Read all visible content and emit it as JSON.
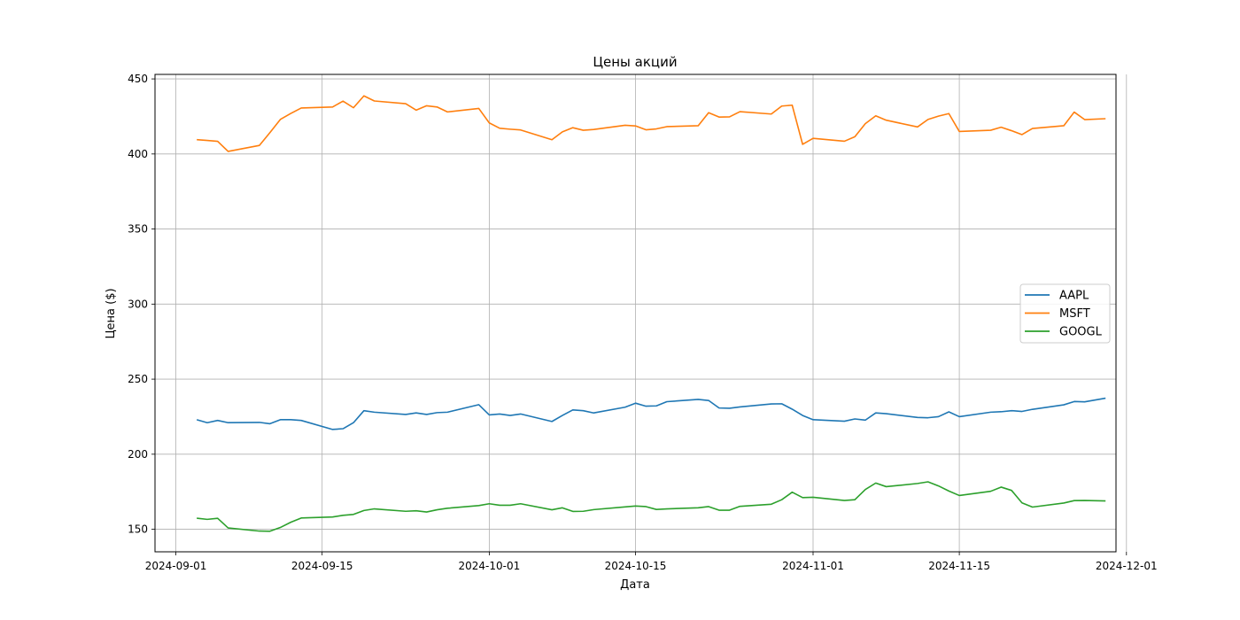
{
  "chart_data": {
    "type": "line",
    "title": "Цены акций",
    "xlabel": "Дата",
    "ylabel": "Цена ($)",
    "xlim": [
      "2024-08-30",
      "2024-11-30"
    ],
    "ylim": [
      135,
      453
    ],
    "xticks": [
      "2024-09-01",
      "2024-09-15",
      "2024-10-01",
      "2024-10-15",
      "2024-11-01",
      "2024-11-15",
      "2024-12-01"
    ],
    "yticks": [
      150,
      200,
      250,
      300,
      350,
      400,
      450
    ],
    "grid": true,
    "legend_position": "center-right",
    "series": [
      {
        "name": "AAPL",
        "color": "#1f77b4",
        "points": [
          [
            "2024-09-03",
            223
          ],
          [
            "2024-09-04",
            221
          ],
          [
            "2024-09-05",
            222.5
          ],
          [
            "2024-09-06",
            221
          ],
          [
            "2024-09-09",
            221.2
          ],
          [
            "2024-09-10",
            220.3
          ],
          [
            "2024-09-11",
            223
          ],
          [
            "2024-09-12",
            223
          ],
          [
            "2024-09-13",
            222.5
          ],
          [
            "2024-09-16",
            216.5
          ],
          [
            "2024-09-17",
            217
          ],
          [
            "2024-09-18",
            221
          ],
          [
            "2024-09-19",
            229
          ],
          [
            "2024-09-20",
            228
          ],
          [
            "2024-09-23",
            226.5
          ],
          [
            "2024-09-24",
            227.5
          ],
          [
            "2024-09-25",
            226.5
          ],
          [
            "2024-09-26",
            227.7
          ],
          [
            "2024-09-27",
            228
          ],
          [
            "2024-09-30",
            233
          ],
          [
            "2024-10-01",
            226.2
          ],
          [
            "2024-10-02",
            226.8
          ],
          [
            "2024-10-03",
            225.8
          ],
          [
            "2024-10-04",
            226.8
          ],
          [
            "2024-10-07",
            221.8
          ],
          [
            "2024-10-08",
            225.8
          ],
          [
            "2024-10-09",
            229.5
          ],
          [
            "2024-10-10",
            229
          ],
          [
            "2024-10-11",
            227.5
          ],
          [
            "2024-10-14",
            231.3
          ],
          [
            "2024-10-15",
            234
          ],
          [
            "2024-10-16",
            232
          ],
          [
            "2024-10-17",
            232.2
          ],
          [
            "2024-10-18",
            235
          ],
          [
            "2024-10-21",
            236.5
          ],
          [
            "2024-10-22",
            235.8
          ],
          [
            "2024-10-23",
            230.8
          ],
          [
            "2024-10-24",
            230.6
          ],
          [
            "2024-10-25",
            231.5
          ],
          [
            "2024-10-28",
            233.5
          ],
          [
            "2024-10-29",
            233.6
          ],
          [
            "2024-10-30",
            230
          ],
          [
            "2024-10-31",
            225.8
          ],
          [
            "2024-11-01",
            223
          ],
          [
            "2024-11-04",
            222
          ],
          [
            "2024-11-05",
            223.5
          ],
          [
            "2024-11-06",
            222.7
          ],
          [
            "2024-11-07",
            227.5
          ],
          [
            "2024-11-08",
            227
          ],
          [
            "2024-11-11",
            224.5
          ],
          [
            "2024-11-12",
            224.3
          ],
          [
            "2024-11-13",
            225
          ],
          [
            "2024-11-14",
            228.2
          ],
          [
            "2024-11-15",
            225
          ],
          [
            "2024-11-18",
            228
          ],
          [
            "2024-11-19",
            228.3
          ],
          [
            "2024-11-20",
            229
          ],
          [
            "2024-11-21",
            228.5
          ],
          [
            "2024-11-22",
            229.9
          ],
          [
            "2024-11-25",
            232.9
          ],
          [
            "2024-11-26",
            235.1
          ],
          [
            "2024-11-27",
            234.9
          ],
          [
            "2024-11-29",
            237.3
          ]
        ]
      },
      {
        "name": "MSFT",
        "color": "#ff7f0e",
        "points": [
          [
            "2024-09-03",
            409.5
          ],
          [
            "2024-09-04",
            409
          ],
          [
            "2024-09-05",
            408.4
          ],
          [
            "2024-09-06",
            401.7
          ],
          [
            "2024-09-09",
            405.7
          ],
          [
            "2024-09-10",
            414.2
          ],
          [
            "2024-09-11",
            423
          ],
          [
            "2024-09-12",
            427
          ],
          [
            "2024-09-13",
            430.6
          ],
          [
            "2024-09-16",
            431.3
          ],
          [
            "2024-09-17",
            435.2
          ],
          [
            "2024-09-18",
            430.8
          ],
          [
            "2024-09-19",
            438.7
          ],
          [
            "2024-09-20",
            435.3
          ],
          [
            "2024-09-23",
            433.5
          ],
          [
            "2024-09-24",
            429.2
          ],
          [
            "2024-09-25",
            432.1
          ],
          [
            "2024-09-26",
            431.3
          ],
          [
            "2024-09-27",
            428
          ],
          [
            "2024-09-30",
            430.3
          ],
          [
            "2024-10-01",
            420.7
          ],
          [
            "2024-10-02",
            417.1
          ],
          [
            "2024-10-03",
            416.5
          ],
          [
            "2024-10-04",
            416
          ],
          [
            "2024-10-07",
            409.5
          ],
          [
            "2024-10-08",
            414.7
          ],
          [
            "2024-10-09",
            417.5
          ],
          [
            "2024-10-10",
            415.8
          ],
          [
            "2024-10-11",
            416.3
          ],
          [
            "2024-10-14",
            419.1
          ],
          [
            "2024-10-15",
            418.7
          ],
          [
            "2024-10-16",
            416.1
          ],
          [
            "2024-10-17",
            416.7
          ],
          [
            "2024-10-18",
            418.2
          ],
          [
            "2024-10-21",
            418.8
          ],
          [
            "2024-10-22",
            427.5
          ],
          [
            "2024-10-23",
            424.6
          ],
          [
            "2024-10-24",
            424.7
          ],
          [
            "2024-10-25",
            428.2
          ],
          [
            "2024-10-28",
            426.6
          ],
          [
            "2024-10-29",
            431.9
          ],
          [
            "2024-10-30",
            432.5
          ],
          [
            "2024-10-31",
            406.4
          ],
          [
            "2024-11-01",
            410.4
          ],
          [
            "2024-11-04",
            408.5
          ],
          [
            "2024-11-05",
            411.5
          ],
          [
            "2024-11-06",
            420.2
          ],
          [
            "2024-11-07",
            425.4
          ],
          [
            "2024-11-08",
            422.5
          ],
          [
            "2024-11-11",
            418
          ],
          [
            "2024-11-12",
            423
          ],
          [
            "2024-11-13",
            425.2
          ],
          [
            "2024-11-14",
            426.9
          ],
          [
            "2024-11-15",
            415
          ],
          [
            "2024-11-18",
            415.8
          ],
          [
            "2024-11-19",
            417.8
          ],
          [
            "2024-11-20",
            415.5
          ],
          [
            "2024-11-21",
            412.9
          ],
          [
            "2024-11-22",
            417
          ],
          [
            "2024-11-25",
            418.8
          ],
          [
            "2024-11-26",
            427.9
          ],
          [
            "2024-11-27",
            422.9
          ],
          [
            "2024-11-29",
            423.5
          ]
        ]
      },
      {
        "name": "GOOGL",
        "color": "#2ca02c",
        "points": [
          [
            "2024-09-03",
            157.4
          ],
          [
            "2024-09-04",
            156.6
          ],
          [
            "2024-09-05",
            157.3
          ],
          [
            "2024-09-06",
            150.9
          ],
          [
            "2024-09-09",
            148.8
          ],
          [
            "2024-09-10",
            148.7
          ],
          [
            "2024-09-11",
            151.2
          ],
          [
            "2024-09-12",
            154.7
          ],
          [
            "2024-09-13",
            157.5
          ],
          [
            "2024-09-16",
            158.2
          ],
          [
            "2024-09-17",
            159.3
          ],
          [
            "2024-09-18",
            159.9
          ],
          [
            "2024-09-19",
            162.5
          ],
          [
            "2024-09-20",
            163.6
          ],
          [
            "2024-09-23",
            162
          ],
          [
            "2024-09-24",
            162.3
          ],
          [
            "2024-09-25",
            161.5
          ],
          [
            "2024-09-26",
            163
          ],
          [
            "2024-09-27",
            164
          ],
          [
            "2024-09-30",
            165.8
          ],
          [
            "2024-10-01",
            167
          ],
          [
            "2024-10-02",
            166
          ],
          [
            "2024-10-03",
            166
          ],
          [
            "2024-10-04",
            167
          ],
          [
            "2024-10-07",
            163
          ],
          [
            "2024-10-08",
            164.3
          ],
          [
            "2024-10-09",
            161.9
          ],
          [
            "2024-10-10",
            162
          ],
          [
            "2024-10-11",
            163.1
          ],
          [
            "2024-10-14",
            164.9
          ],
          [
            "2024-10-15",
            165.5
          ],
          [
            "2024-10-16",
            165.1
          ],
          [
            "2024-10-17",
            163.2
          ],
          [
            "2024-10-18",
            163.6
          ],
          [
            "2024-10-21",
            164.3
          ],
          [
            "2024-10-22",
            165.1
          ],
          [
            "2024-10-23",
            162.7
          ],
          [
            "2024-10-24",
            162.7
          ],
          [
            "2024-10-25",
            165.3
          ],
          [
            "2024-10-28",
            166.7
          ],
          [
            "2024-10-29",
            169.7
          ],
          [
            "2024-10-30",
            174.7
          ],
          [
            "2024-10-31",
            171.1
          ],
          [
            "2024-11-01",
            171.3
          ],
          [
            "2024-11-04",
            169.2
          ],
          [
            "2024-11-05",
            169.7
          ],
          [
            "2024-11-06",
            176.5
          ],
          [
            "2024-11-07",
            180.8
          ],
          [
            "2024-11-08",
            178.4
          ],
          [
            "2024-11-11",
            180.5
          ],
          [
            "2024-11-12",
            181.6
          ],
          [
            "2024-11-13",
            178.9
          ],
          [
            "2024-11-14",
            175.5
          ],
          [
            "2024-11-15",
            172.5
          ],
          [
            "2024-11-18",
            175.3
          ],
          [
            "2024-11-19",
            178.1
          ],
          [
            "2024-11-20",
            175.9
          ],
          [
            "2024-11-21",
            167.6
          ],
          [
            "2024-11-22",
            164.8
          ],
          [
            "2024-11-25",
            167.5
          ],
          [
            "2024-11-26",
            169.1
          ],
          [
            "2024-11-27",
            169.2
          ],
          [
            "2024-11-29",
            168.9
          ]
        ]
      }
    ]
  }
}
